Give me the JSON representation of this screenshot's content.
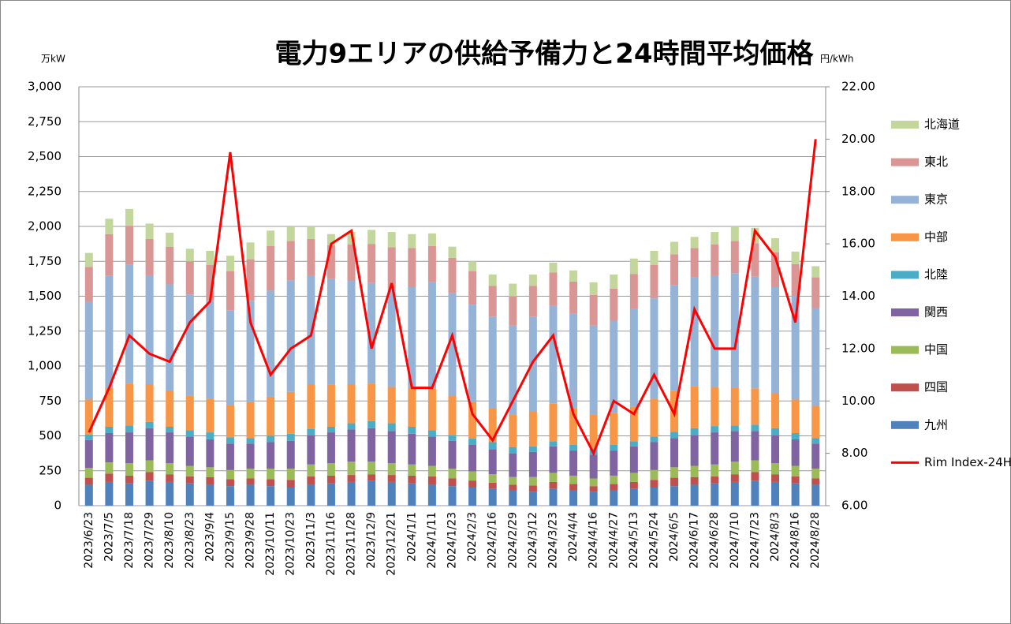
{
  "chart_data": {
    "type": "stacked-bar-line",
    "title": "電力9エリアの供給予備力と24時間平均価格",
    "y_label": "万kW",
    "y2_label": "円/kWh",
    "categories": [
      "2023/6/23",
      "2023/7/5",
      "2023/7/18",
      "2023/7/29",
      "2023/8/10",
      "2023/8/23",
      "2023/9/4",
      "2023/9/15",
      "2023/9/28",
      "2023/10/11",
      "2023/10/23",
      "2023/11/3",
      "2023/11/16",
      "2023/11/28",
      "2023/12/9",
      "2023/12/21",
      "2024/1/1",
      "2024/1/11",
      "2024/1/23",
      "2024/2/3",
      "2024/2/16",
      "2024/2/29",
      "2024/3/12",
      "2024/3/23",
      "2024/4/4",
      "2024/4/16",
      "2024/4/27",
      "2024/5/13",
      "2024/5/24",
      "2024/6/5",
      "2024/6/17",
      "2024/6/28",
      "2024/7/10",
      "2024/7/23",
      "2024/8/3",
      "2024/8/16",
      "2024/8/28"
    ],
    "ylim": [
      0,
      3000
    ],
    "yticks": [
      0,
      250,
      500,
      750,
      {
        "value": 1000,
        "label": "1,000"
      },
      {
        "value": 1250,
        "label": "1,250"
      },
      {
        "value": 1500,
        "label": "1,500"
      },
      {
        "value": 1750,
        "label": "1,750"
      },
      {
        "value": 2000,
        "label": "2,000"
      },
      {
        "value": 2250,
        "label": "2,250"
      },
      {
        "value": 2500,
        "label": "2,500"
      },
      {
        "value": 2750,
        "label": "2,750"
      },
      {
        "value": 3000,
        "label": "3,000"
      }
    ],
    "y2lim": [
      6,
      22
    ],
    "y2ticks": [
      {
        "value": 6,
        "label": "6.00"
      },
      {
        "value": 8,
        "label": "8.00"
      },
      {
        "value": 10,
        "label": "10.00"
      },
      {
        "value": 12,
        "label": "12.00"
      },
      {
        "value": 14,
        "label": "14.00"
      },
      {
        "value": 16,
        "label": "16.00"
      },
      {
        "value": 18,
        "label": "18.00"
      },
      {
        "value": 20,
        "label": "20.00"
      },
      {
        "value": 22,
        "label": "22.00"
      }
    ],
    "grid": true,
    "series": [
      {
        "name": "北海道",
        "color": "#c3d69b",
        "values": [
          100,
          110,
          120,
          110,
          100,
          90,
          100,
          110,
          120,
          110,
          100,
          90,
          80,
          90,
          100,
          110,
          100,
          90,
          80,
          70,
          80,
          90,
          80,
          70,
          80,
          90,
          100,
          110,
          100,
          90,
          80,
          90,
          100,
          110,
          100,
          90,
          80
        ]
      },
      {
        "name": "東北",
        "color": "#d99694",
        "values": [
          250,
          300,
          280,
          260,
          270,
          240,
          260,
          280,
          300,
          320,
          280,
          260,
          240,
          260,
          280,
          300,
          280,
          260,
          250,
          240,
          220,
          210,
          220,
          240,
          230,
          220,
          230,
          250,
          240,
          220,
          210,
          220,
          230,
          240,
          250,
          230,
          220
        ]
      },
      {
        "name": "東京",
        "color": "#95b3d7",
        "values": [
          700,
          800,
          850,
          780,
          760,
          720,
          700,
          680,
          720,
          760,
          800,
          780,
          760,
          740,
          720,
          700,
          720,
          760,
          740,
          700,
          660,
          640,
          680,
          700,
          680,
          640,
          660,
          700,
          720,
          760,
          780,
          800,
          820,
          800,
          760,
          740,
          700
        ]
      },
      {
        "name": "中部",
        "color": "#f79646",
        "values": [
          250,
          280,
          300,
          270,
          260,
          250,
          240,
          230,
          260,
          280,
          300,
          320,
          300,
          280,
          270,
          260,
          280,
          300,
          280,
          260,
          240,
          230,
          250,
          270,
          260,
          240,
          230,
          250,
          270,
          290,
          300,
          280,
          270,
          260,
          250,
          240,
          230
        ]
      },
      {
        "name": "北陸",
        "color": "#4bacc6",
        "values": [
          40,
          45,
          50,
          45,
          40,
          45,
          50,
          45,
          40,
          45,
          50,
          45,
          40,
          45,
          50,
          55,
          50,
          45,
          40,
          45,
          50,
          45,
          40,
          35,
          40,
          45,
          40,
          35,
          40,
          45,
          50,
          45,
          40,
          45,
          50,
          45,
          40
        ]
      },
      {
        "name": "関西",
        "color": "#8064a2",
        "values": [
          200,
          210,
          220,
          230,
          220,
          210,
          200,
          190,
          180,
          190,
          200,
          210,
          220,
          230,
          240,
          230,
          220,
          210,
          200,
          190,
          180,
          170,
          180,
          190,
          180,
          170,
          180,
          190,
          200,
          210,
          220,
          230,
          220,
          210,
          200,
          190,
          180
        ]
      },
      {
        "name": "中国",
        "color": "#9bbb59",
        "values": [
          70,
          80,
          90,
          85,
          80,
          75,
          70,
          65,
          70,
          75,
          80,
          85,
          90,
          95,
          90,
          85,
          80,
          75,
          70,
          65,
          60,
          55,
          60,
          65,
          60,
          55,
          60,
          65,
          70,
          75,
          80,
          85,
          90,
          85,
          80,
          75,
          70
        ]
      },
      {
        "name": "四国",
        "color": "#c0504d",
        "values": [
          50,
          60,
          55,
          60,
          55,
          50,
          55,
          50,
          45,
          50,
          55,
          60,
          55,
          50,
          45,
          50,
          55,
          60,
          55,
          50,
          45,
          40,
          45,
          50,
          45,
          40,
          45,
          50,
          55,
          60,
          55,
          50,
          55,
          60,
          55,
          50,
          45
        ]
      },
      {
        "name": "九州",
        "color": "#4f81bd",
        "values": [
          150,
          170,
          160,
          180,
          170,
          160,
          150,
          140,
          150,
          140,
          130,
          150,
          160,
          170,
          180,
          170,
          160,
          150,
          140,
          130,
          120,
          110,
          100,
          120,
          110,
          100,
          110,
          120,
          130,
          140,
          150,
          160,
          170,
          180,
          170,
          160,
          150
        ]
      },
      {
        "name": "Rim Index-24H",
        "color": "#ff0000",
        "axis": "y2",
        "type": "line",
        "values": [
          8.8,
          10.5,
          12.5,
          11.8,
          11.5,
          13,
          13.8,
          19.5,
          13,
          11,
          12,
          12.5,
          16,
          16.5,
          12,
          14.5,
          10.5,
          10.5,
          12.5,
          9.5,
          8.5,
          10,
          11.5,
          12.5,
          9.5,
          8,
          10,
          9.5,
          11,
          9.5,
          13.5,
          12,
          12,
          16.5,
          15.5,
          13,
          20
        ]
      }
    ]
  }
}
